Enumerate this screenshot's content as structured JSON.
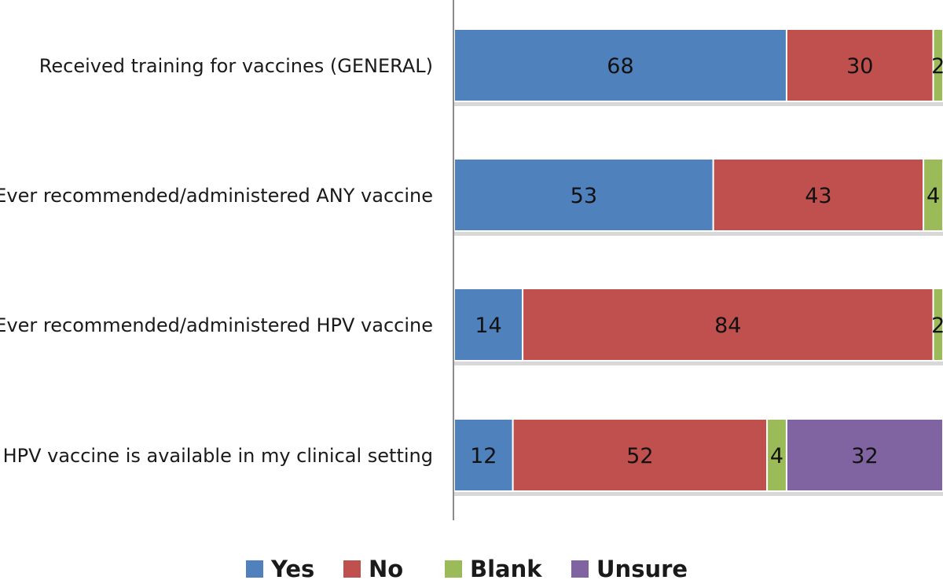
{
  "chart_data": {
    "type": "bar",
    "orientation": "horizontal",
    "stacked": true,
    "title": "",
    "xlabel": "",
    "ylabel": "",
    "xlim": [
      0,
      100
    ],
    "grid": false,
    "legend_position": "bottom",
    "categories": [
      "Received training for vaccines (GENERAL)",
      "Ever recommended/administered ANY vaccine",
      "Ever recommended/administered HPV vaccine",
      "HPV vaccine is available in my clinical setting"
    ],
    "series": [
      {
        "name": "Yes",
        "color": "#4f81bd",
        "values": [
          68,
          53,
          14,
          12
        ]
      },
      {
        "name": "No",
        "color": "#c0504d",
        "values": [
          30,
          43,
          84,
          52
        ]
      },
      {
        "name": "Blank",
        "color": "#9bbb59",
        "values": [
          2,
          4,
          2,
          4
        ]
      },
      {
        "name": "Unsure",
        "color": "#8064a2",
        "values": [
          0,
          0,
          0,
          32
        ]
      }
    ]
  }
}
